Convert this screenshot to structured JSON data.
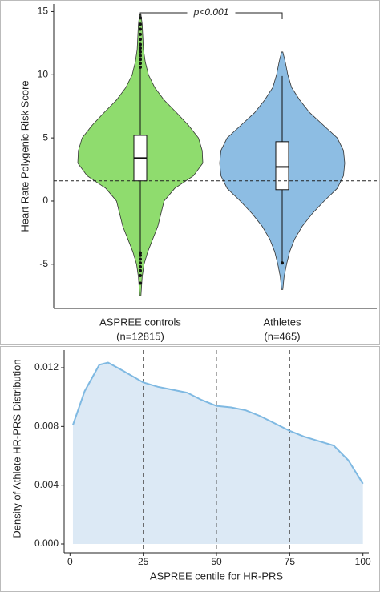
{
  "chart_data": [
    {
      "type": "violin",
      "y_label": "Heart Rate Polygenic Risk Score",
      "categories": [
        "ASPREE controls",
        "Athletes"
      ],
      "category_notes": [
        "(n=12815)",
        "(n=465)"
      ],
      "ylim": [
        -8.5,
        15.6
      ],
      "yticks": [
        15,
        10,
        5,
        0,
        -5
      ],
      "reference_line": 1.6,
      "annotation": "p<0.001",
      "series": [
        {
          "name": "ASPREE controls",
          "color": "#8fdc6e",
          "density_y": [
            -7.5,
            -6,
            -5,
            -4,
            -3,
            -2,
            -1,
            0,
            1,
            2,
            3,
            4,
            5,
            6,
            7,
            8,
            9,
            10,
            11,
            12,
            13,
            14,
            14.8
          ],
          "density": [
            0.01,
            0.03,
            0.06,
            0.12,
            0.2,
            0.28,
            0.33,
            0.38,
            0.55,
            0.85,
            1.0,
            0.99,
            0.93,
            0.77,
            0.58,
            0.38,
            0.23,
            0.13,
            0.08,
            0.05,
            0.04,
            0.03,
            0.01
          ],
          "whisker_low": -4.0,
          "q1": 1.6,
          "median": 3.4,
          "q3": 5.2,
          "whisker_high": 10.5,
          "outliers": [
            10.6,
            10.9,
            11.2,
            11.5,
            11.8,
            12.1,
            12.4,
            12.8,
            13.2,
            13.6,
            14.0,
            14.5,
            -4.1,
            -4.3,
            -4.6,
            -4.9,
            -5.2,
            -5.5,
            -5.9,
            -6.5
          ]
        },
        {
          "name": "Athletes",
          "color": "#8dbde3",
          "density_y": [
            -7,
            -6,
            -5,
            -4,
            -3,
            -2,
            -1,
            0,
            1,
            2,
            3,
            4,
            5,
            6,
            7,
            8,
            9,
            10,
            11,
            11.8
          ],
          "density": [
            0.01,
            0.03,
            0.07,
            0.12,
            0.2,
            0.32,
            0.48,
            0.67,
            0.88,
            0.98,
            1.0,
            0.98,
            0.88,
            0.66,
            0.44,
            0.28,
            0.15,
            0.09,
            0.05,
            0.01
          ],
          "whisker_low": -4.8,
          "q1": 0.9,
          "median": 2.7,
          "q3": 4.7,
          "whisker_high": 9.9,
          "outliers": [
            -4.9
          ]
        }
      ]
    },
    {
      "type": "area",
      "x_label": "ASPREE centile for HR-PRS",
      "y_label": "Density of Athlete HR-PRS Distribution",
      "x": [
        1,
        5,
        10,
        13,
        18,
        25,
        30,
        35,
        40,
        45,
        50,
        55,
        60,
        65,
        70,
        75,
        80,
        85,
        90,
        95,
        100
      ],
      "values": [
        0.0081,
        0.0104,
        0.0122,
        0.01235,
        0.0118,
        0.011,
        0.0107,
        0.0105,
        0.0103,
        0.0098,
        0.0094,
        0.0093,
        0.0091,
        0.0087,
        0.0082,
        0.0077,
        0.0073,
        0.007,
        0.0067,
        0.0057,
        0.0041
      ],
      "color": "#7fb9e2",
      "fill_color": "#dce9f5",
      "vlines": [
        25,
        50,
        75
      ],
      "xlim": [
        -2,
        102
      ],
      "xticks": [
        0,
        25,
        50,
        75,
        100
      ],
      "ylim": [
        -0.0006,
        0.0132
      ],
      "yticks": [
        {
          "value": 0,
          "label": "0.000"
        },
        0.004,
        0.008,
        0.012
      ]
    }
  ]
}
